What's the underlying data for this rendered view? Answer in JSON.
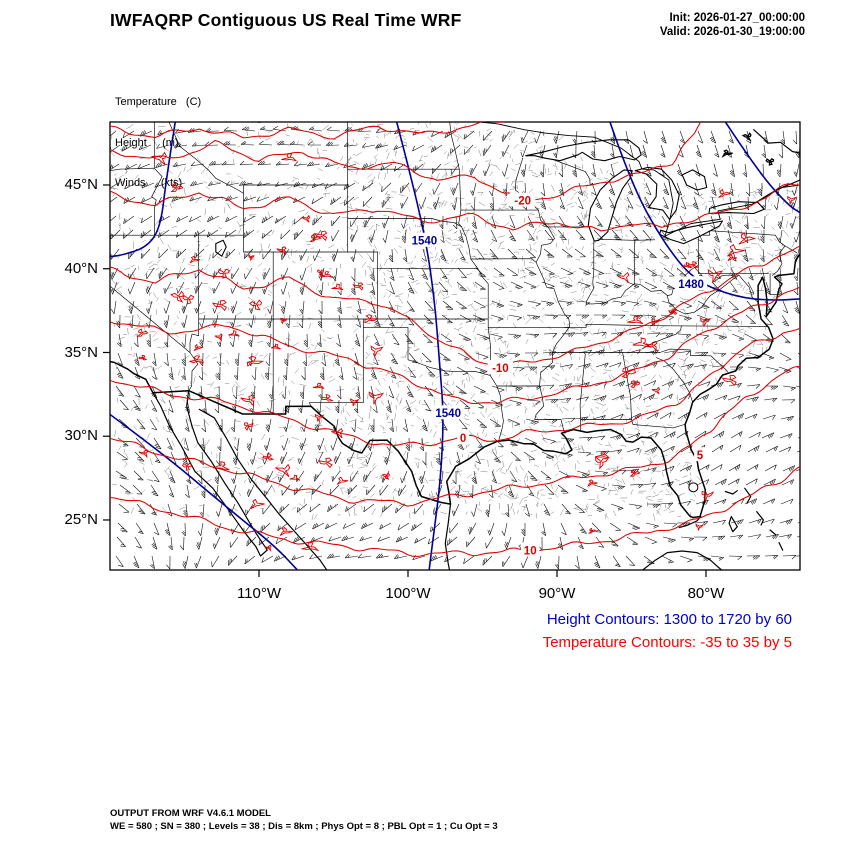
{
  "header": {
    "title": "IWFAQRP Contiguous US Real Time WRF",
    "init": "Init: 2026-01-27_00:00:00",
    "valid": "Valid: 2026-01-30_19:00:00"
  },
  "legend": {
    "temperature": "Temperature   (C)",
    "height": "Height     (m)",
    "winds": "Winds     (kts)"
  },
  "axes": {
    "y_ticks": [
      "45°N",
      "40°N",
      "35°N",
      "30°N",
      "25°N"
    ],
    "x_ticks": [
      "110°W",
      "100°W",
      "90°W",
      "80°W"
    ]
  },
  "contour_info": {
    "height": "Height Contours: 1300 to 1720 by 60",
    "temperature": "Temperature Contours: -35 to 35 by 5"
  },
  "footer": {
    "line1": "OUTPUT FROM WRF V4.6.1 MODEL",
    "line2": "WE = 580 ; SN = 380 ; Levels = 38 ; Dis = 8km ; Phys Opt = 8 ; PBL Opt = 1 ; Cu Opt = 3"
  },
  "colors": {
    "height_text": "#0000cc",
    "height_line": "#000099",
    "temperature_text": "#ff0000",
    "temperature_line": "#dd0000",
    "map_line": "#000000"
  },
  "chart_data": {
    "type": "heatmap",
    "subtype": "contour-weather-map",
    "title": "IWFAQRP Contiguous US Real Time WRF",
    "region": "Contiguous US",
    "projection_extent": {
      "lon_range": [
        -120.0,
        -73.7
      ],
      "lat_range": [
        22.0,
        48.76
      ]
    },
    "xlabel_ticks_deg_west": [
      110,
      100,
      90,
      80
    ],
    "ylabel_ticks_deg_north": [
      45,
      40,
      35,
      30,
      25
    ],
    "fields": [
      {
        "name": "Temperature",
        "units": "C",
        "contour_min": -35,
        "contour_max": 35,
        "contour_interval": 5,
        "color": "#dd0000"
      },
      {
        "name": "Height",
        "units": "m",
        "contour_min": 1300,
        "contour_max": 1720,
        "contour_interval": 60,
        "color": "#000099"
      },
      {
        "name": "Winds",
        "units": "kts",
        "rendering": "wind barbs",
        "color": "#000000"
      }
    ],
    "contour_labels": [
      {
        "text": "-20",
        "type": "temperature",
        "lon": -92.3,
        "lat": 44.1
      },
      {
        "text": "1540",
        "type": "height",
        "lon": -98.9,
        "lat": 41.7
      },
      {
        "text": "1480",
        "type": "height",
        "lon": -81.0,
        "lat": 39.1
      },
      {
        "text": "-10",
        "type": "temperature",
        "lon": -93.8,
        "lat": 34.1
      },
      {
        "text": "1540",
        "type": "height",
        "lon": -97.3,
        "lat": 31.4
      },
      {
        "text": "0",
        "type": "temperature",
        "lon": -96.3,
        "lat": 29.9
      },
      {
        "text": "5",
        "type": "temperature",
        "lon": -80.4,
        "lat": 28.9
      },
      {
        "text": "10",
        "type": "temperature",
        "lon": -91.8,
        "lat": 23.2
      }
    ],
    "init_time": "2026-01-27_00:00:00",
    "valid_time": "2026-01-30_19:00:00"
  }
}
